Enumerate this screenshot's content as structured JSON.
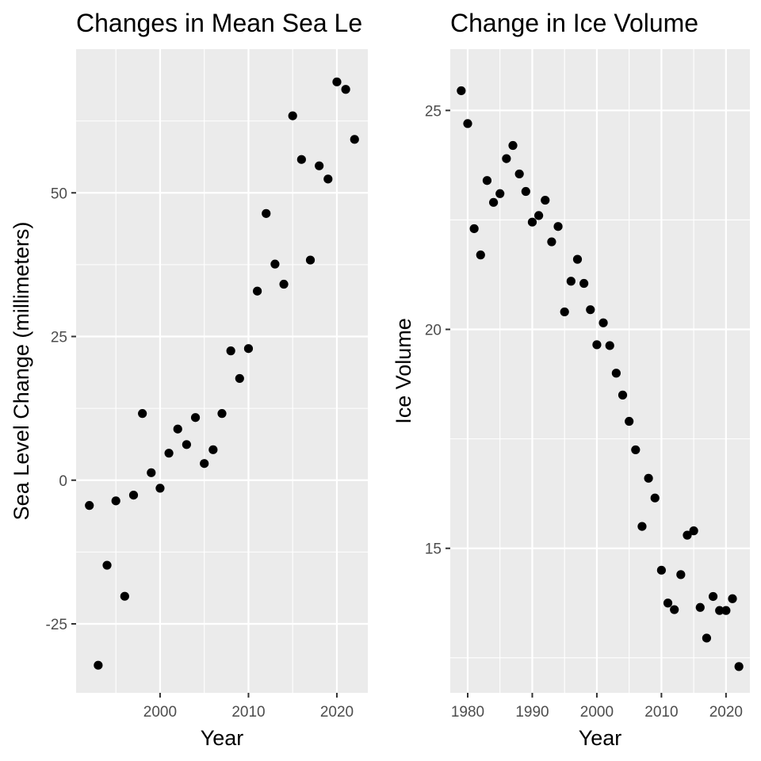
{
  "colors": {
    "panel_background": "#ebebeb",
    "grid": "#ffffff",
    "points": "#000000",
    "tick_label": "#4d4d4d"
  },
  "chart_data": [
    {
      "type": "scatter",
      "title": "Changes in Mean Sea Le",
      "xlabel": "Year",
      "ylabel": "Sea Level Change (millimeters)",
      "xlim": [
        1990.5,
        2023.5
      ],
      "ylim": [
        -37,
        75
      ],
      "x_ticks": [
        2000,
        2010,
        2020
      ],
      "y_ticks": [
        -25,
        0,
        25,
        50
      ],
      "x_tick_labels": [
        "2000",
        "2010",
        "2020"
      ],
      "y_tick_labels": [
        "-25",
        "0",
        "25",
        "50"
      ],
      "grid": true,
      "legend": "none",
      "points": [
        {
          "x": 1992,
          "y": -4.4
        },
        {
          "x": 1993,
          "y": -32.2
        },
        {
          "x": 1994,
          "y": -14.8
        },
        {
          "x": 1995,
          "y": -3.6
        },
        {
          "x": 1996,
          "y": -20.2
        },
        {
          "x": 1997,
          "y": -2.6
        },
        {
          "x": 1998,
          "y": 11.6
        },
        {
          "x": 1999,
          "y": 1.3
        },
        {
          "x": 2000,
          "y": -1.4
        },
        {
          "x": 2001,
          "y": 4.7
        },
        {
          "x": 2002,
          "y": 8.9
        },
        {
          "x": 2003,
          "y": 6.2
        },
        {
          "x": 2004,
          "y": 10.9
        },
        {
          "x": 2005,
          "y": 2.9
        },
        {
          "x": 2006,
          "y": 5.3
        },
        {
          "x": 2007,
          "y": 11.6
        },
        {
          "x": 2008,
          "y": 22.5
        },
        {
          "x": 2009,
          "y": 17.7
        },
        {
          "x": 2010,
          "y": 22.9
        },
        {
          "x": 2011,
          "y": 32.9
        },
        {
          "x": 2012,
          "y": 46.4
        },
        {
          "x": 2013,
          "y": 37.6
        },
        {
          "x": 2014,
          "y": 34.1
        },
        {
          "x": 2015,
          "y": 63.4
        },
        {
          "x": 2016,
          "y": 55.8
        },
        {
          "x": 2017,
          "y": 38.3
        },
        {
          "x": 2018,
          "y": 54.7
        },
        {
          "x": 2019,
          "y": 52.4
        },
        {
          "x": 2020,
          "y": 69.3
        },
        {
          "x": 2021,
          "y": 68.0
        },
        {
          "x": 2022,
          "y": 59.3
        }
      ]
    },
    {
      "type": "scatter",
      "title": "Change in Ice Volume",
      "xlabel": "Year",
      "ylabel": "Ice Volume",
      "xlim": [
        1977.3,
        2023.7
      ],
      "ylim": [
        11.7,
        26.4
      ],
      "x_ticks": [
        1980,
        1990,
        2000,
        2010,
        2020
      ],
      "y_ticks": [
        15,
        20,
        25
      ],
      "x_tick_labels": [
        "1980",
        "1990",
        "2000",
        "2010",
        "2020"
      ],
      "y_tick_labels": [
        "15",
        "20",
        "25"
      ],
      "grid": true,
      "legend": "none",
      "points": [
        {
          "x": 1979,
          "y": 25.45
        },
        {
          "x": 1980,
          "y": 24.7
        },
        {
          "x": 1981,
          "y": 22.3
        },
        {
          "x": 1982,
          "y": 21.7
        },
        {
          "x": 1983,
          "y": 23.4
        },
        {
          "x": 1984,
          "y": 22.9
        },
        {
          "x": 1985,
          "y": 23.1
        },
        {
          "x": 1986,
          "y": 23.9
        },
        {
          "x": 1987,
          "y": 24.2
        },
        {
          "x": 1988,
          "y": 23.55
        },
        {
          "x": 1989,
          "y": 23.15
        },
        {
          "x": 1990,
          "y": 22.45
        },
        {
          "x": 1991,
          "y": 22.6
        },
        {
          "x": 1992,
          "y": 22.95
        },
        {
          "x": 1993,
          "y": 22.0
        },
        {
          "x": 1994,
          "y": 22.35
        },
        {
          "x": 1995,
          "y": 20.4
        },
        {
          "x": 1996,
          "y": 21.1
        },
        {
          "x": 1997,
          "y": 21.6
        },
        {
          "x": 1998,
          "y": 21.05
        },
        {
          "x": 1999,
          "y": 20.45
        },
        {
          "x": 2000,
          "y": 19.65
        },
        {
          "x": 2001,
          "y": 20.15
        },
        {
          "x": 2002,
          "y": 19.63
        },
        {
          "x": 2003,
          "y": 19.0
        },
        {
          "x": 2004,
          "y": 18.5
        },
        {
          "x": 2005,
          "y": 17.9
        },
        {
          "x": 2006,
          "y": 17.25
        },
        {
          "x": 2007,
          "y": 15.5
        },
        {
          "x": 2008,
          "y": 16.6
        },
        {
          "x": 2009,
          "y": 16.15
        },
        {
          "x": 2010,
          "y": 14.5
        },
        {
          "x": 2011,
          "y": 13.75
        },
        {
          "x": 2012,
          "y": 13.6
        },
        {
          "x": 2013,
          "y": 14.4
        },
        {
          "x": 2014,
          "y": 15.3
        },
        {
          "x": 2015,
          "y": 15.4
        },
        {
          "x": 2016,
          "y": 13.65
        },
        {
          "x": 2017,
          "y": 12.95
        },
        {
          "x": 2018,
          "y": 13.9
        },
        {
          "x": 2019,
          "y": 13.58
        },
        {
          "x": 2020,
          "y": 13.58
        },
        {
          "x": 2021,
          "y": 13.85
        },
        {
          "x": 2022,
          "y": 12.3
        }
      ]
    }
  ]
}
